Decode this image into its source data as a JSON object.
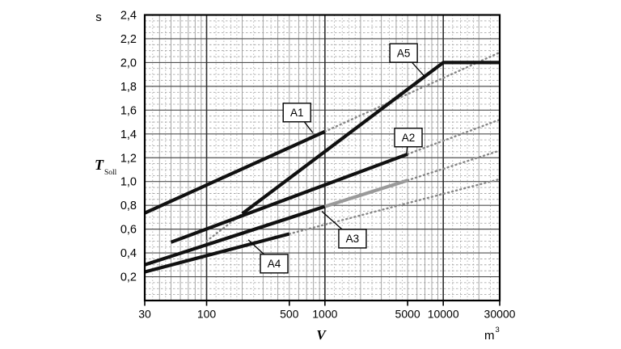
{
  "figure": {
    "background": "#ffffff"
  },
  "chart_data": {
    "type": "line",
    "title": "",
    "x_axis": {
      "symbol": "V",
      "unit_base": "m",
      "unit_exp": "3",
      "scale": "log",
      "min": 30,
      "max": 30000,
      "ticks": [
        {
          "value": 30,
          "label": "30"
        },
        {
          "value": 100,
          "label": "100"
        },
        {
          "value": 500,
          "label": "500"
        },
        {
          "value": 1000,
          "label": "1000"
        },
        {
          "value": 5000,
          "label": "5000"
        },
        {
          "value": 10000,
          "label": "10000"
        },
        {
          "value": 30000,
          "label": "30000"
        }
      ]
    },
    "y_axis": {
      "unit": "s",
      "symbol": "T",
      "symbol_sub": "Soll",
      "scale": "linear",
      "min": 0,
      "max": 2.4,
      "major_step": 0.2,
      "minor_step": 0.05,
      "ticks": [
        {
          "value": 0.2,
          "label": "0,2"
        },
        {
          "value": 0.4,
          "label": "0,4"
        },
        {
          "value": 0.6,
          "label": "0,6"
        },
        {
          "value": 0.8,
          "label": "0,8"
        },
        {
          "value": 1.0,
          "label": "1,0"
        },
        {
          "value": 1.2,
          "label": "1,2"
        },
        {
          "value": 1.4,
          "label": "1,4"
        },
        {
          "value": 1.6,
          "label": "1,6"
        },
        {
          "value": 1.8,
          "label": "1,8"
        },
        {
          "value": 2.0,
          "label": "2,0"
        },
        {
          "value": 2.2,
          "label": "2,2"
        },
        {
          "value": 2.4,
          "label": "2,4"
        }
      ]
    },
    "colors": {
      "line": "#111111",
      "gray_line": "#9a9a9a",
      "dotted": "#878787",
      "grid_major": "#4f4f4f",
      "grid_minor": "#9c9c9c",
      "grid_subminor": "#a8a8a8",
      "grid_decade": "#2f2f2f",
      "axis": "#000000",
      "callout_bg": "#ffffff"
    },
    "series": [
      {
        "id": "A1",
        "style": "solid",
        "color": "black",
        "points": [
          [
            30,
            0.735
          ],
          [
            1000,
            1.42
          ]
        ]
      },
      {
        "id": "A2",
        "style": "solid",
        "color": "black",
        "points": [
          [
            50,
            0.49
          ],
          [
            5000,
            1.23
          ]
        ]
      },
      {
        "id": "A3",
        "style": "solid",
        "color": "black",
        "points": [
          [
            30,
            0.3
          ],
          [
            1000,
            0.79
          ]
        ]
      },
      {
        "id": "A3-gray",
        "style": "solid",
        "color": "gray",
        "points": [
          [
            1000,
            0.79
          ],
          [
            5000,
            1.01
          ]
        ]
      },
      {
        "id": "A4",
        "style": "solid",
        "color": "black",
        "points": [
          [
            30,
            0.24
          ],
          [
            500,
            0.56
          ]
        ]
      },
      {
        "id": "A5",
        "style": "solid",
        "color": "black",
        "points": [
          [
            200,
            0.73
          ],
          [
            10000,
            2.0
          ],
          [
            30000,
            2.0
          ]
        ]
      },
      {
        "id": "A1-ext",
        "style": "dotted",
        "color": "gray",
        "points": [
          [
            1000,
            1.42
          ],
          [
            30000,
            2.085
          ]
        ]
      },
      {
        "id": "A2-ext",
        "style": "dotted",
        "color": "gray",
        "points": [
          [
            5000,
            1.23
          ],
          [
            30000,
            1.52
          ]
        ]
      },
      {
        "id": "A3-ext",
        "style": "dotted",
        "color": "gray",
        "points": [
          [
            5000,
            1.01
          ],
          [
            30000,
            1.26
          ]
        ]
      },
      {
        "id": "A4-ext",
        "style": "dotted",
        "color": "gray",
        "points": [
          [
            500,
            0.56
          ],
          [
            30000,
            1.02
          ]
        ]
      },
      {
        "id": "A5-ext",
        "style": "dotted",
        "color": "gray",
        "points": [
          [
            100,
            0.5
          ],
          [
            200,
            0.73
          ]
        ]
      }
    ],
    "callouts": [
      {
        "label": "A1",
        "box_v": 580,
        "box_t": 1.58,
        "anchor_v": 790,
        "anchor_t": 1.41
      },
      {
        "label": "A2",
        "box_v": 5070,
        "box_t": 1.37,
        "anchor_v": 4900,
        "anchor_t": 1.24
      },
      {
        "label": "A3",
        "box_v": 1710,
        "box_t": 0.52,
        "anchor_v": 940,
        "anchor_t": 0.75
      },
      {
        "label": "A4",
        "box_v": 372,
        "box_t": 0.31,
        "anchor_v": 225,
        "anchor_t": 0.51
      },
      {
        "label": "A5",
        "box_v": 4620,
        "box_t": 2.08,
        "anchor_v": 7000,
        "anchor_t": 1.88
      }
    ]
  }
}
